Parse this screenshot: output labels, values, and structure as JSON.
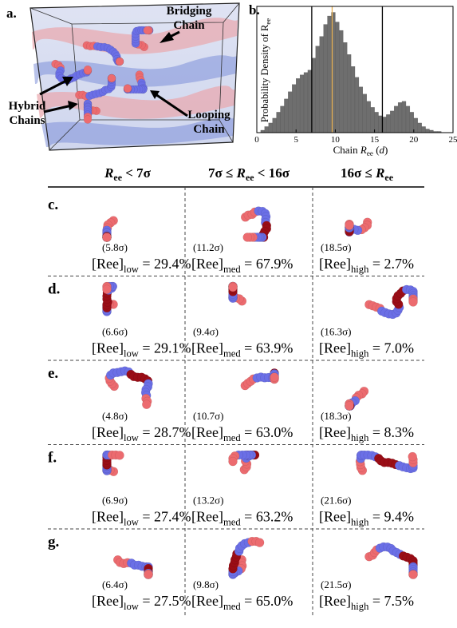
{
  "panel_a": {
    "letter": "a.",
    "bridging": [
      "Bridging",
      "Chain"
    ],
    "hybrid": [
      "Hybrid",
      "Chains"
    ],
    "looping": [
      "Looping",
      "Chain"
    ]
  },
  "chart_data": {
    "type": "histogram",
    "letter": "b.",
    "ylabel": [
      "Probability Density of R",
      "ee"
    ],
    "xlabel": [
      "Chain ",
      "R",
      "ee",
      " (",
      "d",
      ")"
    ],
    "bins": [
      0.5,
      1,
      1.5,
      2,
      2.5,
      3,
      3.5,
      4,
      4.5,
      5,
      5.5,
      6,
      6.5,
      7,
      7.5,
      8,
      8.5,
      9,
      9.5,
      10,
      10.5,
      11,
      11.5,
      12,
      12.5,
      13,
      13.5,
      14,
      14.5,
      15,
      15.5,
      16,
      16.5,
      17,
      17.5,
      18,
      18.5,
      19,
      19.5,
      20,
      20.5,
      21,
      21.5,
      22,
      22.5,
      23,
      23.5
    ],
    "values": [
      0.02,
      0.05,
      0.08,
      0.12,
      0.17,
      0.22,
      0.28,
      0.34,
      0.4,
      0.45,
      0.48,
      0.5,
      0.52,
      0.62,
      0.72,
      0.8,
      0.9,
      0.97,
      1.0,
      0.92,
      0.85,
      0.75,
      0.65,
      0.55,
      0.46,
      0.38,
      0.32,
      0.26,
      0.21,
      0.17,
      0.14,
      0.13,
      0.15,
      0.18,
      0.22,
      0.25,
      0.26,
      0.22,
      0.17,
      0.12,
      0.08,
      0.05,
      0.03,
      0.02,
      0.01,
      0.01
    ],
    "color": "#6e6e6e",
    "xlim": [
      0,
      25
    ],
    "xticks": [
      0,
      5,
      10,
      15,
      20,
      25
    ],
    "ylim": [
      0,
      1.05
    ],
    "vlines": [
      {
        "value": 7,
        "color": "#000000"
      },
      {
        "value": 16,
        "color": "#000000"
      },
      {
        "value": 9.6,
        "color": "#e6b054"
      }
    ]
  },
  "table": {
    "headers": [
      [
        "R",
        "ee",
        " < 7σ"
      ],
      [
        "7σ ≤ ",
        "R",
        "ee",
        " < 16σ"
      ],
      [
        "16σ ≤ ",
        "R",
        "ee"
      ]
    ],
    "rows": [
      {
        "letter": "c.",
        "cells": [
          {
            "size": "(5.8σ)",
            "text": [
              "[Ree]",
              "low",
              " = 29.4%"
            ]
          },
          {
            "size": "(11.2σ)",
            "text": [
              "[Ree]",
              "med",
              " = 67.9%"
            ]
          },
          {
            "size": "(18.5σ)",
            "text": [
              "[Ree]",
              "high",
              " = 2.7%"
            ]
          }
        ]
      },
      {
        "letter": "d.",
        "cells": [
          {
            "size": "(6.6σ)",
            "text": [
              "[Ree]",
              "low",
              " = 29.1%"
            ]
          },
          {
            "size": "(9.4σ)",
            "text": [
              "[Ree]",
              "med",
              " = 63.9%"
            ]
          },
          {
            "size": "(16.3σ)",
            "text": [
              "[Ree]",
              "high",
              " = 7.0%"
            ]
          }
        ]
      },
      {
        "letter": "e.",
        "cells": [
          {
            "size": "(4.8σ)",
            "text": [
              "[Ree]",
              "low",
              " = 28.7%"
            ]
          },
          {
            "size": "(10.7σ)",
            "text": [
              "[Ree]",
              "med",
              " = 63.0%"
            ]
          },
          {
            "size": "(18.3σ)",
            "text": [
              "[Ree]",
              "high",
              " = 8.3%"
            ]
          }
        ]
      },
      {
        "letter": "f.",
        "cells": [
          {
            "size": "(6.9σ)",
            "text": [
              "[Ree]",
              "low",
              " = 27.4%"
            ]
          },
          {
            "size": "(13.2σ)",
            "text": [
              "[Ree]",
              "med",
              " = 63.2%"
            ]
          },
          {
            "size": "(21.6σ)",
            "text": [
              "[Ree]",
              "high",
              " = 9.4%"
            ]
          }
        ]
      },
      {
        "letter": "g.",
        "cells": [
          {
            "size": "(6.4σ)",
            "text": [
              "[Ree]",
              "low",
              " = 27.5%"
            ]
          },
          {
            "size": "(9.8σ)",
            "text": [
              "[Ree]",
              "med",
              " = 65.0%"
            ]
          },
          {
            "size": "(21.5σ)",
            "text": [
              "[Ree]",
              "high",
              " = 7.5%"
            ]
          }
        ]
      }
    ]
  }
}
